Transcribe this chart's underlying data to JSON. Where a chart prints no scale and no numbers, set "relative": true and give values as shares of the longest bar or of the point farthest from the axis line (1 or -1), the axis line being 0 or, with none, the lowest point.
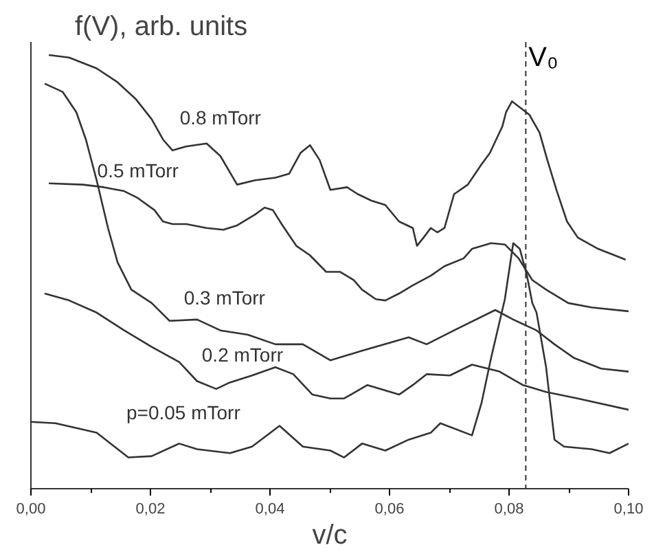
{
  "chart_data": {
    "type": "line",
    "relative": true,
    "ylabel": "f(V), arb. units",
    "xlabel": "v/c",
    "xlim": [
      0,
      0.1
    ],
    "xticks": [
      {
        "value": 0,
        "label": "0,00"
      },
      {
        "value": 0.02,
        "label": "0,02"
      },
      {
        "value": 0.04,
        "label": "0,04"
      },
      {
        "value": 0.06,
        "label": "0,06"
      },
      {
        "value": 0.08,
        "label": "0,08"
      },
      {
        "value": 0.1,
        "label": "0,10"
      }
    ],
    "tick_labels": "x",
    "grid": false,
    "line_style": "solid",
    "series": [
      {
        "name": "0.8 mTorr",
        "color": "#333333",
        "x": [
          0.003,
          0.0064,
          0.011,
          0.0145,
          0.0175,
          0.0202,
          0.0221,
          0.0237,
          0.026,
          0.0294,
          0.0317,
          0.0345,
          0.0375,
          0.0409,
          0.0432,
          0.0451,
          0.0467,
          0.0483,
          0.0501,
          0.0529,
          0.0547,
          0.057,
          0.0593,
          0.0616,
          0.0639,
          0.0646,
          0.0657,
          0.0669,
          0.068,
          0.0692,
          0.0708,
          0.0731,
          0.0754,
          0.0768,
          0.0789,
          0.0795,
          0.0805,
          0.0823,
          0.0834,
          0.0851,
          0.0864,
          0.088,
          0.0897,
          0.0915,
          0.0949,
          0.0995
        ],
        "values": [
          1.0,
          0.994,
          0.969,
          0.937,
          0.899,
          0.852,
          0.805,
          0.78,
          0.789,
          0.796,
          0.767,
          0.701,
          0.711,
          0.717,
          0.726,
          0.774,
          0.792,
          0.758,
          0.689,
          0.695,
          0.679,
          0.664,
          0.654,
          0.616,
          0.601,
          0.56,
          0.579,
          0.601,
          0.591,
          0.601,
          0.679,
          0.701,
          0.748,
          0.774,
          0.836,
          0.868,
          0.893,
          0.874,
          0.862,
          0.821,
          0.758,
          0.686,
          0.616,
          0.579,
          0.553,
          0.528
        ]
      },
      {
        "name": "0.5 mTorr",
        "color": "#333333",
        "x": [
          0.003,
          0.0087,
          0.0122,
          0.0156,
          0.0179,
          0.0207,
          0.0221,
          0.0237,
          0.026,
          0.0294,
          0.0322,
          0.0345,
          0.0375,
          0.0391,
          0.0405,
          0.0421,
          0.0444,
          0.0467,
          0.0494,
          0.0517,
          0.054,
          0.0554,
          0.0577,
          0.0593,
          0.0616,
          0.0639,
          0.0669,
          0.0692,
          0.0724,
          0.0738,
          0.077,
          0.0793,
          0.0816,
          0.0839,
          0.0862,
          0.0899,
          0.0938,
          0.1
        ],
        "values": [
          0.704,
          0.701,
          0.695,
          0.686,
          0.67,
          0.642,
          0.616,
          0.61,
          0.61,
          0.601,
          0.597,
          0.607,
          0.632,
          0.648,
          0.642,
          0.607,
          0.56,
          0.538,
          0.5,
          0.5,
          0.481,
          0.459,
          0.437,
          0.434,
          0.45,
          0.469,
          0.491,
          0.513,
          0.531,
          0.553,
          0.566,
          0.563,
          0.531,
          0.481,
          0.459,
          0.428,
          0.418,
          0.409
        ]
      },
      {
        "name": "0.3 mTorr",
        "color": "#333333",
        "x": [
          0.0023,
          0.0053,
          0.0076,
          0.0092,
          0.011,
          0.0129,
          0.0145,
          0.0168,
          0.0202,
          0.0232,
          0.0278,
          0.0317,
          0.0363,
          0.0409,
          0.0455,
          0.0501,
          0.0554,
          0.0632,
          0.0662,
          0.0708,
          0.0777,
          0.0807,
          0.0846,
          0.0876,
          0.0908,
          0.0954,
          0.1
        ],
        "values": [
          0.934,
          0.915,
          0.868,
          0.805,
          0.711,
          0.601,
          0.522,
          0.459,
          0.428,
          0.387,
          0.39,
          0.365,
          0.355,
          0.333,
          0.333,
          0.296,
          0.318,
          0.349,
          0.333,
          0.365,
          0.412,
          0.39,
          0.365,
          0.333,
          0.302,
          0.277,
          0.27
        ]
      },
      {
        "name": "0.2 mTorr",
        "color": "#333333",
        "x": [
          0.0023,
          0.0064,
          0.011,
          0.0156,
          0.0202,
          0.0248,
          0.0278,
          0.031,
          0.0333,
          0.037,
          0.0409,
          0.0439,
          0.0471,
          0.0501,
          0.0524,
          0.0563,
          0.0616,
          0.0639,
          0.0662,
          0.0701,
          0.0738,
          0.0784,
          0.0823,
          0.0862,
          0.0915,
          0.1
        ],
        "values": [
          0.45,
          0.434,
          0.406,
          0.365,
          0.327,
          0.292,
          0.248,
          0.23,
          0.245,
          0.261,
          0.28,
          0.264,
          0.217,
          0.208,
          0.208,
          0.239,
          0.217,
          0.239,
          0.264,
          0.261,
          0.286,
          0.27,
          0.239,
          0.223,
          0.208,
          0.182
        ]
      },
      {
        "name": "p=0.05 mTorr",
        "color": "#333333",
        "x": [
          0.0,
          0.0041,
          0.011,
          0.0163,
          0.0202,
          0.0248,
          0.0278,
          0.0333,
          0.037,
          0.0416,
          0.0455,
          0.0501,
          0.0524,
          0.0554,
          0.0593,
          0.0632,
          0.0669,
          0.0685,
          0.0738,
          0.0754,
          0.077,
          0.0793,
          0.0807,
          0.0818,
          0.083,
          0.0839,
          0.0846,
          0.0862,
          0.0876,
          0.0892,
          0.0938,
          0.0968,
          0.1
        ],
        "values": [
          0.154,
          0.151,
          0.129,
          0.072,
          0.075,
          0.104,
          0.091,
          0.082,
          0.097,
          0.145,
          0.097,
          0.088,
          0.072,
          0.104,
          0.088,
          0.113,
          0.129,
          0.151,
          0.123,
          0.198,
          0.302,
          0.437,
          0.566,
          0.553,
          0.491,
          0.428,
          0.406,
          0.28,
          0.113,
          0.097,
          0.091,
          0.082,
          0.104
        ]
      }
    ],
    "ref_lines": [
      {
        "axis": "x",
        "value": 0.0828,
        "label": "V₀",
        "color": "#333333",
        "line_style": "dashed"
      }
    ]
  }
}
